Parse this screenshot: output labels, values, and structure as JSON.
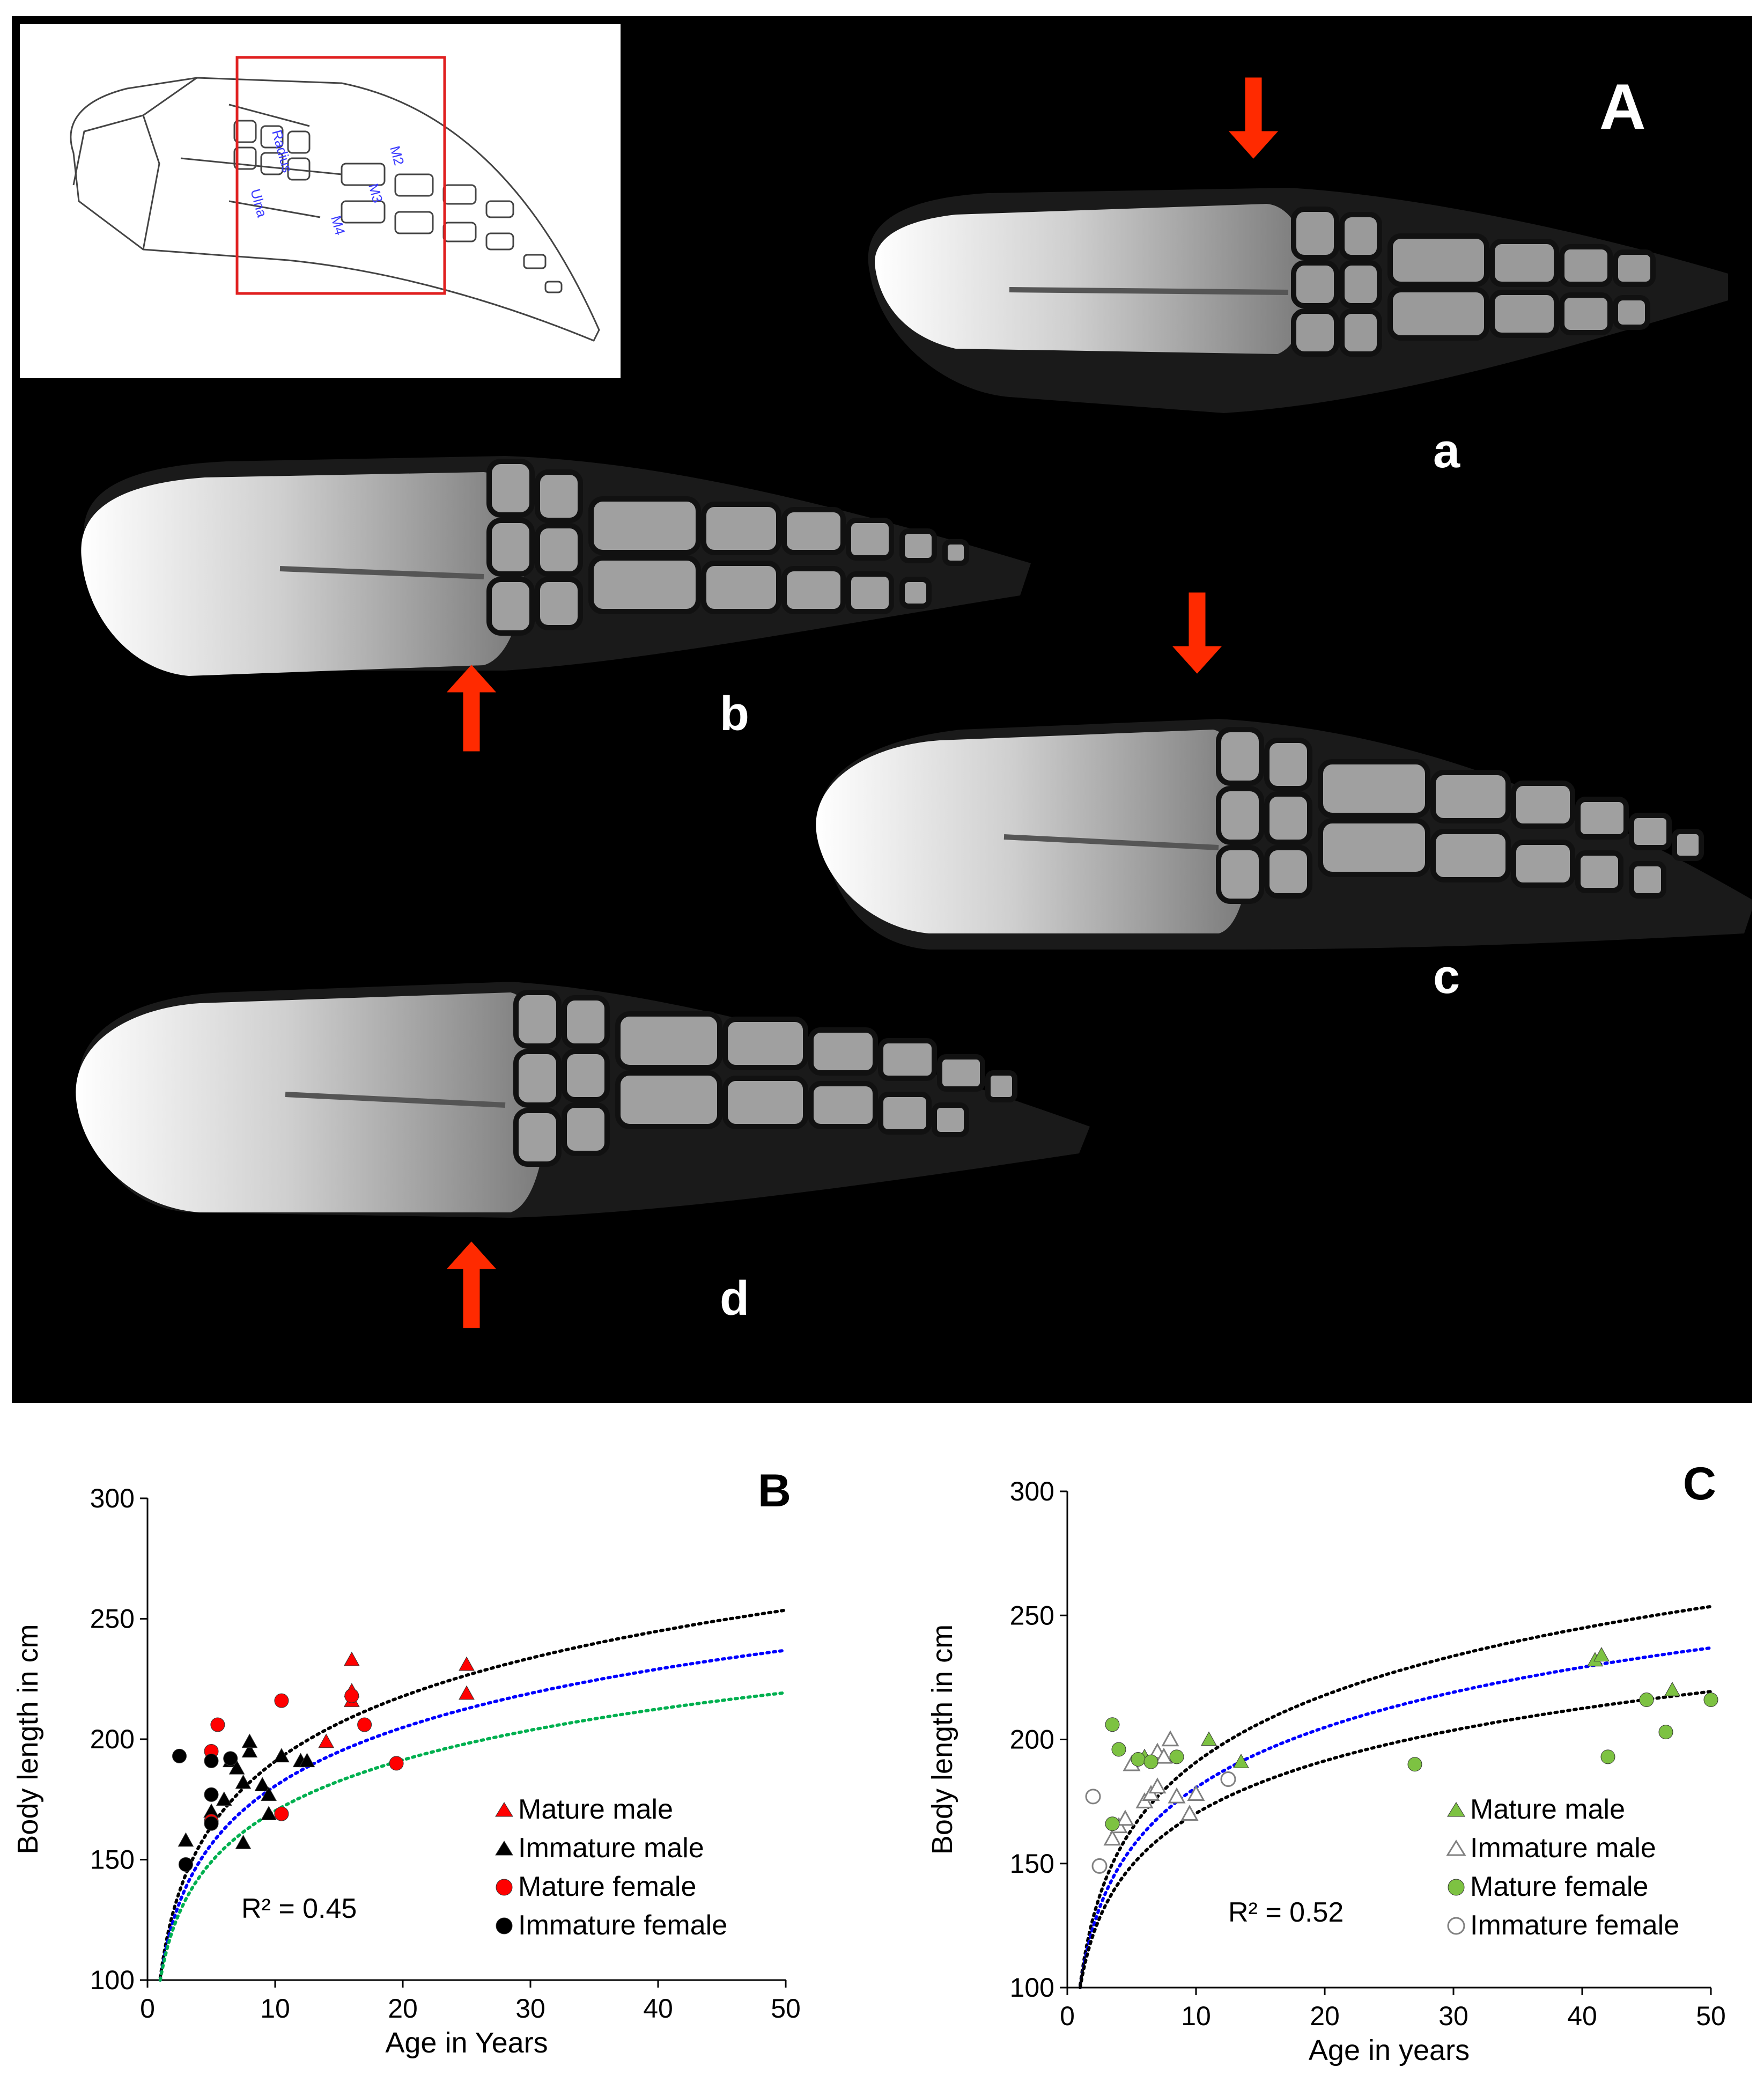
{
  "panel_a": {
    "label": "A",
    "inset_labels": [
      "Radius",
      "Ulna",
      "M2",
      "M3",
      "M4"
    ],
    "sub_labels": [
      "a",
      "b",
      "c",
      "d"
    ]
  },
  "chart_data": [
    {
      "panel": "B",
      "type": "scatter",
      "xlabel": "Age in Years",
      "ylabel": "Body length in cm",
      "xlim": [
        0,
        50
      ],
      "ylim": [
        100,
        300
      ],
      "xticks": [
        0,
        10,
        20,
        30,
        40,
        50
      ],
      "yticks": [
        100,
        150,
        200,
        250,
        300
      ],
      "grid": false,
      "legend_position": "right",
      "annotation": "R² = 0.45",
      "series": [
        {
          "name": "Mature male",
          "marker": "triangle",
          "color": "#ff0000",
          "filled": true,
          "points": [
            [
              16,
              233
            ],
            [
              16,
              220
            ],
            [
              16,
              216
            ],
            [
              25,
              231
            ],
            [
              25,
              219
            ],
            [
              14,
              199
            ]
          ]
        },
        {
          "name": "Immature male",
          "marker": "triangle",
          "color": "#000000",
          "filled": true,
          "points": [
            [
              3,
              158
            ],
            [
              5,
              170
            ],
            [
              6,
              175
            ],
            [
              6.5,
              191
            ],
            [
              7,
              188
            ],
            [
              7.5,
              182
            ],
            [
              7.5,
              157
            ],
            [
              8,
              195
            ],
            [
              8,
              199
            ],
            [
              9,
              181
            ],
            [
              9.5,
              177
            ],
            [
              9.5,
              169
            ],
            [
              10.5,
              193
            ],
            [
              12,
              191
            ],
            [
              12.5,
              191
            ]
          ]
        },
        {
          "name": "Mature female",
          "marker": "circle",
          "color": "#ff0000",
          "filled": true,
          "points": [
            [
              5,
              195
            ],
            [
              5.5,
              206
            ],
            [
              5,
              166
            ],
            [
              10.5,
              216
            ],
            [
              10.5,
              169
            ],
            [
              16,
              218
            ],
            [
              17,
              206
            ],
            [
              19.5,
              190
            ]
          ]
        },
        {
          "name": "Immature female",
          "marker": "circle",
          "color": "#000000",
          "filled": true,
          "points": [
            [
              2.5,
              193
            ],
            [
              3,
              148
            ],
            [
              5,
              191
            ],
            [
              5,
              177
            ],
            [
              5,
              165
            ],
            [
              6.5,
              192
            ]
          ]
        }
      ],
      "trendlines": [
        {
          "color": "#000000",
          "a": 101,
          "b": 39
        },
        {
          "color": "#0000ff",
          "a": 100,
          "b": 35
        },
        {
          "color": "#00b050",
          "a": 100,
          "b": 30.5
        }
      ]
    },
    {
      "panel": "C",
      "type": "scatter",
      "xlabel": "Age in years",
      "ylabel": "Body length in cm",
      "xlim": [
        0,
        50
      ],
      "ylim": [
        100,
        300
      ],
      "xticks": [
        0,
        10,
        20,
        30,
        40,
        50
      ],
      "yticks": [
        100,
        150,
        200,
        250,
        300
      ],
      "grid": false,
      "legend_position": "right",
      "annotation": "R² = 0.52",
      "series": [
        {
          "name": "Mature male",
          "marker": "triangle",
          "color": "#7dc242",
          "filled": true,
          "points": [
            [
              41,
              232
            ],
            [
              41.5,
              234
            ],
            [
              47,
              220
            ],
            [
              11,
              200
            ],
            [
              13.5,
              191
            ],
            [
              6,
              193
            ]
          ]
        },
        {
          "name": "Immature male",
          "marker": "triangle",
          "color": "#808080",
          "filled": false,
          "points": [
            [
              3.5,
              160
            ],
            [
              4,
              165
            ],
            [
              4.5,
              168
            ],
            [
              5,
              190
            ],
            [
              6,
              175
            ],
            [
              6.5,
              178
            ],
            [
              7,
              181
            ],
            [
              7,
              195
            ],
            [
              7.5,
              193
            ],
            [
              8,
              200
            ],
            [
              8.5,
              177
            ],
            [
              9.5,
              170
            ],
            [
              10,
              178
            ]
          ]
        },
        {
          "name": "Mature female",
          "marker": "circle",
          "color": "#7dc242",
          "filled": true,
          "points": [
            [
              3.5,
              206
            ],
            [
              4,
              196
            ],
            [
              3.5,
              166
            ],
            [
              5.5,
              192
            ],
            [
              6.5,
              191
            ],
            [
              8.5,
              193
            ],
            [
              27,
              190
            ],
            [
              42,
              193
            ],
            [
              45,
              216
            ],
            [
              46.5,
              203
            ],
            [
              50,
              216
            ]
          ]
        },
        {
          "name": "Immature female",
          "marker": "circle",
          "color": "#808080",
          "filled": false,
          "points": [
            [
              2,
              177
            ],
            [
              2.5,
              149
            ],
            [
              12.5,
              184
            ]
          ]
        }
      ],
      "trendlines": [
        {
          "color": "#000000",
          "a": 101,
          "b": 39
        },
        {
          "color": "#0000ff",
          "a": 100,
          "b": 35
        },
        {
          "color": "#000000",
          "a": 100,
          "b": 30.5
        }
      ]
    }
  ]
}
